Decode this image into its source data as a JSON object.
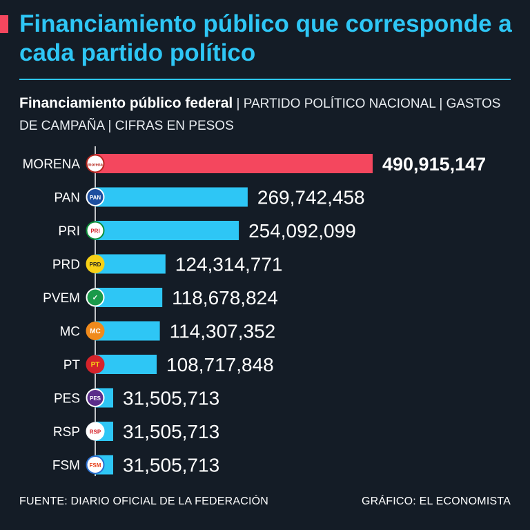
{
  "header": {
    "title": "Financiamiento público que corresponde a cada partido político",
    "subtitle_lead": "Financiamiento público federal",
    "subtitle_rest": " | PARTIDO POLÍTICO NACIONAL | GASTOS DE CAMPAÑA | CIFRAS EN PESOS"
  },
  "colors": {
    "accent": "#f4475e",
    "bar": "#2ec6f5",
    "highlight_bar": "#f4475e",
    "background": "#141c26"
  },
  "chart_data": {
    "type": "bar",
    "orientation": "horizontal",
    "categories": [
      "MORENA",
      "PAN",
      "PRI",
      "PRD",
      "PVEM",
      "MC",
      "PT",
      "PES",
      "RSP",
      "FSM"
    ],
    "values": [
      490915147,
      269742458,
      254092099,
      124314771,
      118678824,
      114307352,
      108717848,
      31505713,
      31505713,
      31505713
    ],
    "value_labels": [
      "490,915,147",
      "269,742,458",
      "254,092,099",
      "124,314,771",
      "118,678,824",
      "114,307,352",
      "108,717,848",
      "31,505,713",
      "31,505,713",
      "31,505,713"
    ],
    "highlight": "MORENA",
    "logos": [
      {
        "text": "morena",
        "bg": "#ffffff",
        "fg": "#b5261e",
        "ring": "#b5261e"
      },
      {
        "text": "PAN",
        "bg": "#1d4fa0",
        "fg": "#ffffff",
        "ring": "#ffffff"
      },
      {
        "text": "PRI",
        "bg": "#ffffff",
        "fg": "#d5232a",
        "ring": "#0d8f3a"
      },
      {
        "text": "PRD",
        "bg": "#f7d117",
        "fg": "#222222",
        "ring": "#f7d117"
      },
      {
        "text": "✓",
        "bg": "#1a9a4a",
        "fg": "#ffffff",
        "ring": "#ffffff"
      },
      {
        "text": "MC",
        "bg": "#f08a1c",
        "fg": "#ffffff",
        "ring": "#f08a1c"
      },
      {
        "text": "PT",
        "bg": "#d5232a",
        "fg": "#f7d117",
        "ring": "#d5232a"
      },
      {
        "text": "PES",
        "bg": "#5b2d8a",
        "fg": "#ffffff",
        "ring": "#ffffff"
      },
      {
        "text": "RSP",
        "bg": "#ffffff",
        "fg": "#d5232a",
        "ring": "#ffffff"
      },
      {
        "text": "FSM",
        "bg": "#ffffff",
        "fg": "#e8441f",
        "ring": "#2a6fd0"
      }
    ],
    "xlim": [
      0,
      490915147
    ]
  },
  "footer": {
    "source": "FUENTE: DIARIO OFICIAL DE LA FEDERACIÓN",
    "credit": "GRÁFICO: EL ECONOMISTA"
  }
}
